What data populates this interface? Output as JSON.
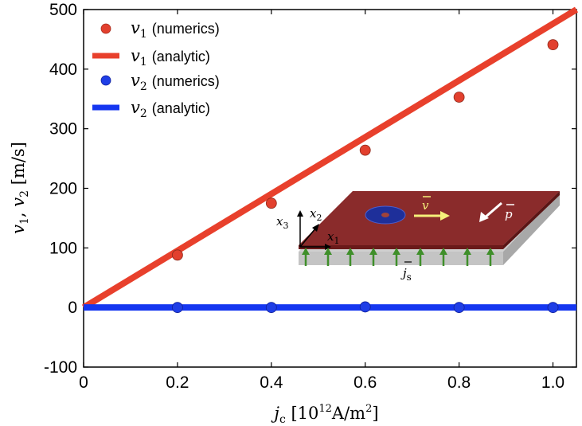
{
  "chart_data": {
    "type": "scatter",
    "xlabel": "j_c [10^12 A/m^2]",
    "ylabel": "v_1, v_2 [m/s]",
    "xlim": [
      0,
      1.05
    ],
    "ylim": [
      -100,
      500
    ],
    "x_ticks": [
      "0",
      "0.2",
      "0.4",
      "0.6",
      "0.8",
      "1.0"
    ],
    "y_ticks": [
      "500",
      "400",
      "300",
      "200",
      "100",
      "0",
      "-100"
    ],
    "series": [
      {
        "name": "v1 (numerics)",
        "kind": "points",
        "color": "#e2402e",
        "x": [
          0.2,
          0.4,
          0.6,
          0.8,
          1.0
        ],
        "y": [
          88,
          175,
          264,
          353,
          441
        ]
      },
      {
        "name": "v1 (analytic)",
        "kind": "line",
        "color": "#e8402c",
        "x": [
          0,
          1.05
        ],
        "y": [
          0,
          500
        ]
      },
      {
        "name": "v2 (numerics)",
        "kind": "points",
        "color": "#1f3ee6",
        "x": [
          0.2,
          0.4,
          0.6,
          0.8,
          1.0
        ],
        "y": [
          0,
          0,
          1,
          0,
          0
        ]
      },
      {
        "name": "v2 (analytic)",
        "kind": "line",
        "color": "#1536f0",
        "x": [
          0,
          1.05
        ],
        "y": [
          0,
          0
        ]
      }
    ],
    "legend": {
      "placement": "top-left",
      "entries": [
        {
          "symbol": "v1",
          "sub": "1",
          "text": "(numerics)"
        },
        {
          "symbol": "v1",
          "sub": "1",
          "text": "(analytic)"
        },
        {
          "symbol": "v2",
          "sub": "2",
          "text": "(numerics)"
        },
        {
          "symbol": "v2",
          "sub": "2",
          "text": "(analytic)"
        }
      ]
    },
    "inset": {
      "labels": {
        "x1": "x",
        "x1_sub": "1",
        "x2": "x",
        "x2_sub": "2",
        "x3": "x",
        "x3_sub": "3",
        "v": "v",
        "p": "p",
        "js": "j",
        "js_sub": "s"
      },
      "colors": {
        "film_top": "#8a2b2b",
        "film_edge": "#6e1f1f",
        "substrate": "#c8c8c8",
        "skyrmion": "#1e2f9a",
        "current_arrow": "#3f8f2a",
        "v_arrow": "#f5f07a"
      }
    }
  }
}
